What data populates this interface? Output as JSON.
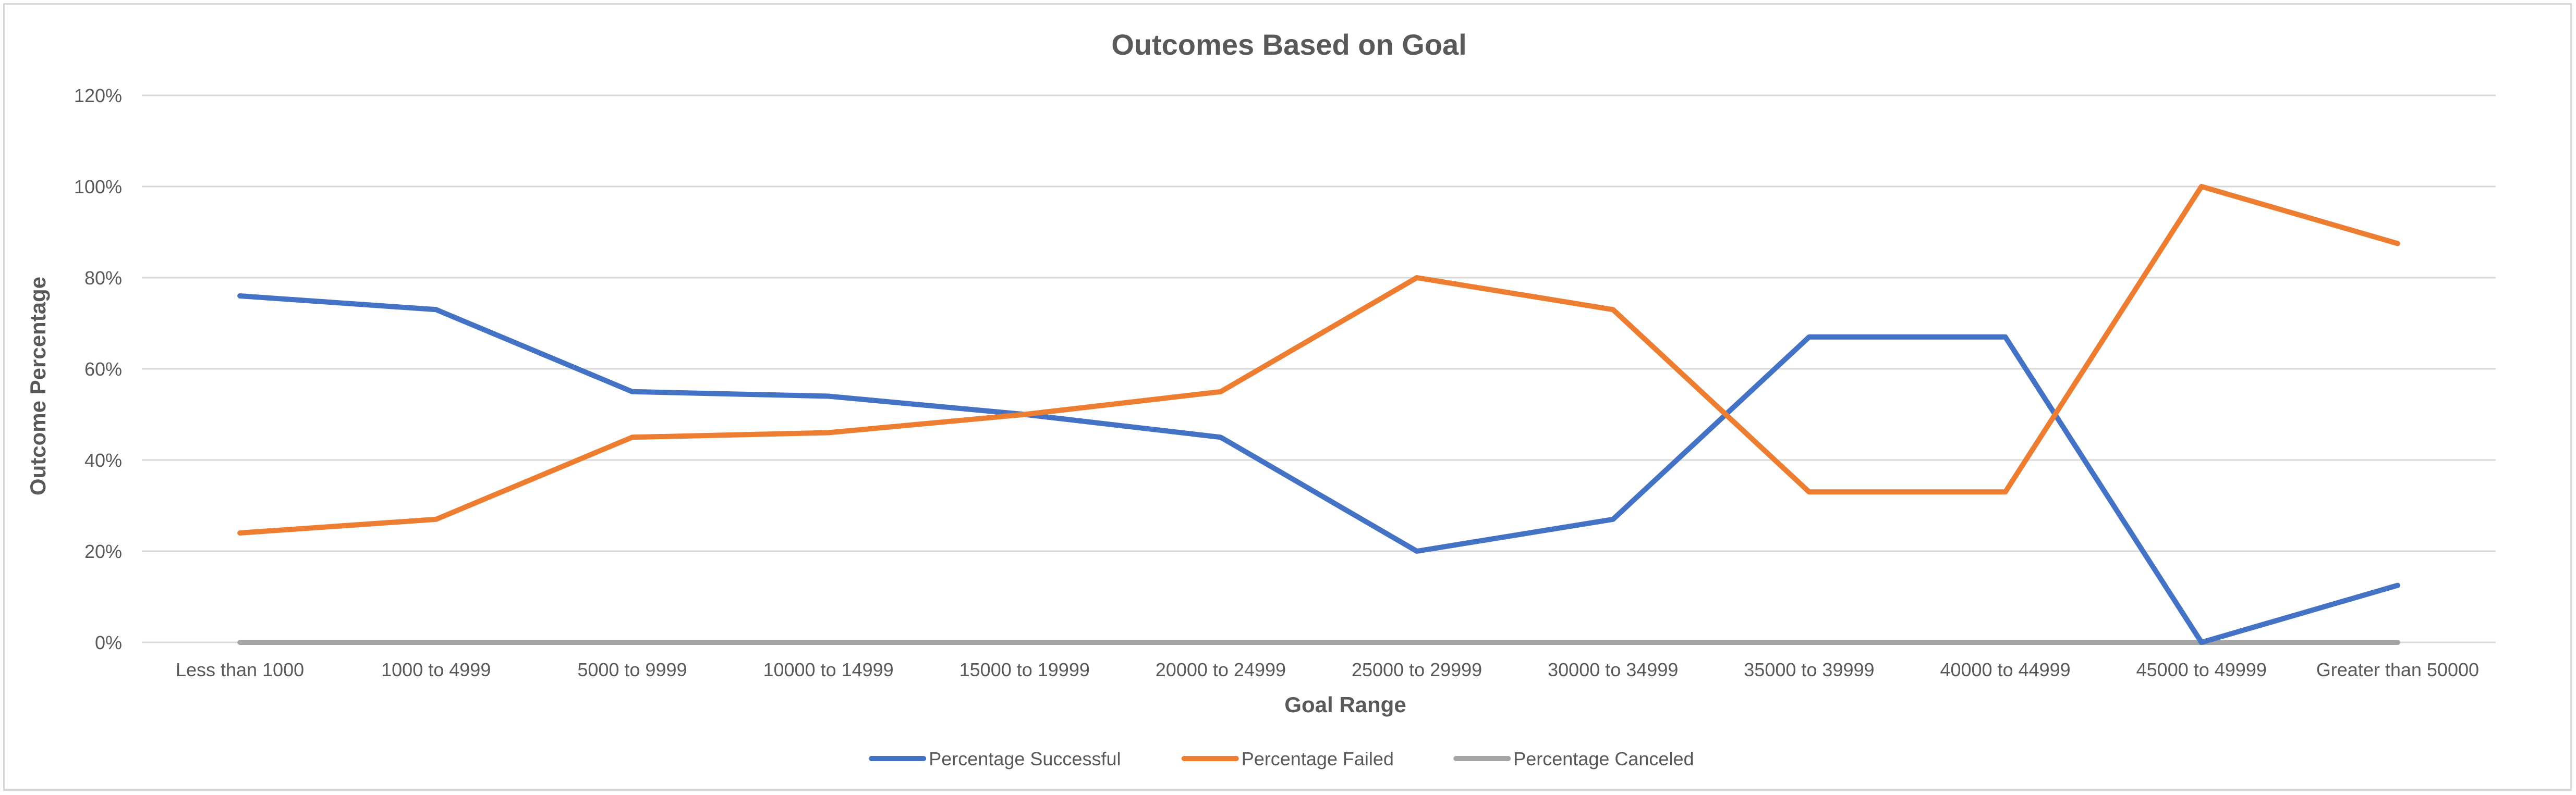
{
  "chart_data": {
    "type": "line",
    "title": "Outcomes Based on Goal",
    "xlabel": "Goal Range",
    "ylabel": "Outcome Percentage",
    "categories": [
      "Less than 1000",
      "1000 to 4999",
      "5000 to 9999",
      "10000 to 14999",
      "15000 to 19999",
      "20000 to 24999",
      "25000 to 29999",
      "30000 to 34999",
      "35000 to 39999",
      "40000 to 44999",
      "45000 to 49999",
      "Greater than 50000"
    ],
    "ylim": [
      0,
      120
    ],
    "yticks": [
      0,
      20,
      40,
      60,
      80,
      100,
      120
    ],
    "ytick_labels": [
      "0%",
      "20%",
      "40%",
      "60%",
      "80%",
      "100%",
      "120%"
    ],
    "grid": true,
    "legend_position": "bottom",
    "series": [
      {
        "name": "Percentage Successful",
        "color": "#4472C4",
        "values": [
          76,
          73,
          55,
          54,
          50,
          45,
          20,
          27,
          67,
          67,
          0,
          12.5
        ]
      },
      {
        "name": "Percentage Failed",
        "color": "#ED7D31",
        "values": [
          24,
          27,
          45,
          46,
          50,
          55,
          80,
          73,
          33,
          33,
          100,
          87.5
        ]
      },
      {
        "name": "Percentage Canceled",
        "color": "#A5A5A5",
        "values": [
          0,
          0,
          0,
          0,
          0,
          0,
          0,
          0,
          0,
          0,
          0,
          0
        ]
      }
    ]
  }
}
